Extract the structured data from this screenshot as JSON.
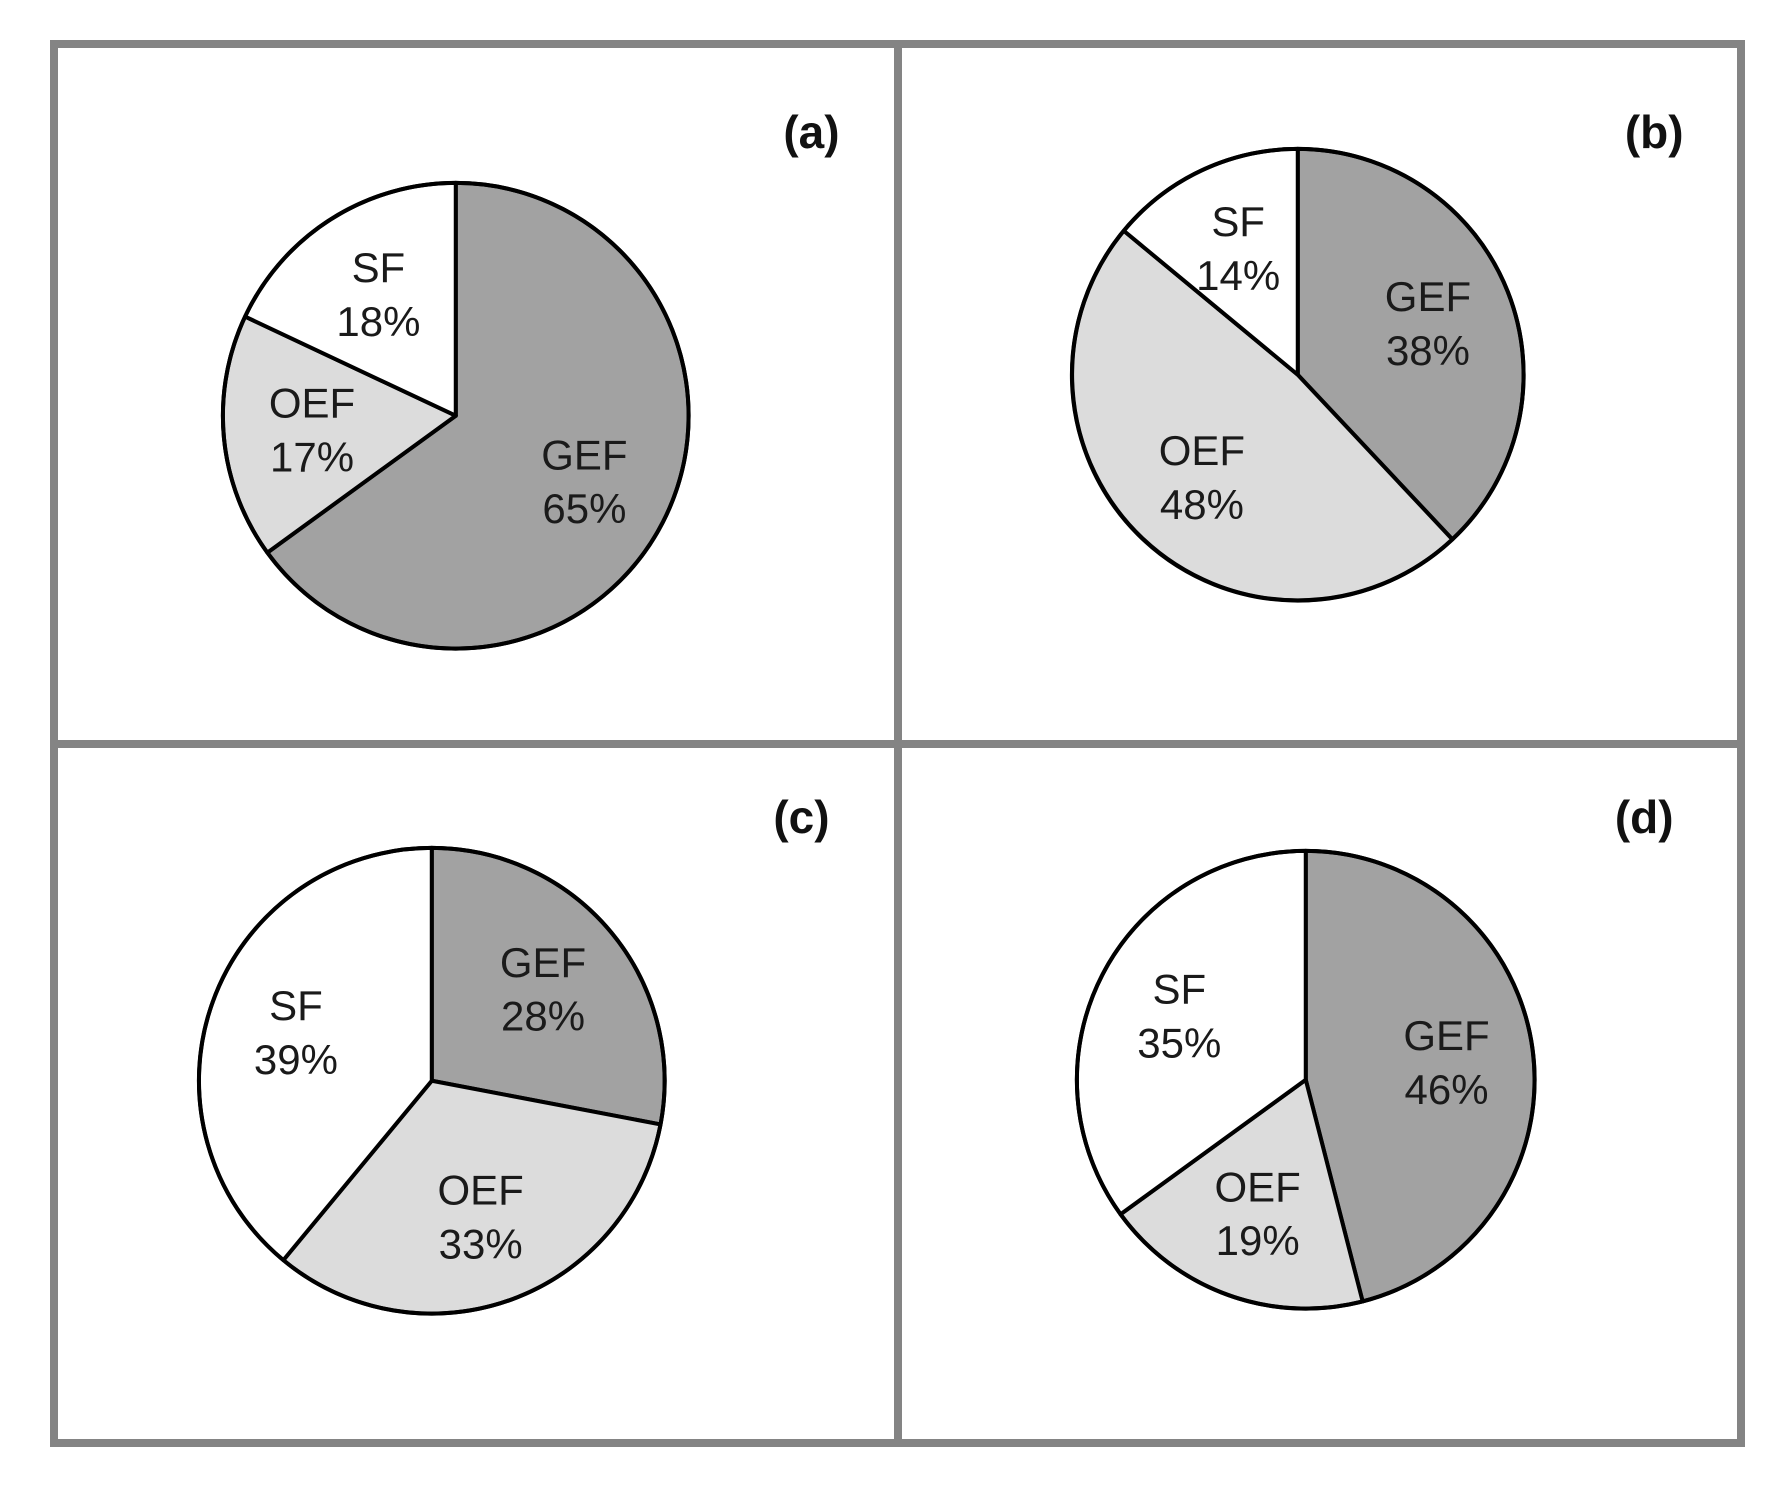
{
  "figure": {
    "background": "#ffffff",
    "frame_color": "#848484",
    "panel_background": "#ffffff",
    "slice_stroke_color": "#000000",
    "slice_label_color": "#1a1a1a",
    "panel_label_color": "#111111"
  },
  "chart_data": [
    {
      "type": "pie",
      "title": "(a)",
      "labels": [
        "GEF",
        "OEF",
        "SF"
      ],
      "values": [
        65,
        17,
        18
      ],
      "value_suffix": "%",
      "colors": [
        "#a2a2a2",
        "#dcdcdc",
        "#ffffff"
      ],
      "start_angle_deg": -90,
      "direction": "clockwise",
      "legend": "none",
      "data_labels": "inside"
    },
    {
      "type": "pie",
      "title": "(b)",
      "labels": [
        "GEF",
        "OEF",
        "SF"
      ],
      "values": [
        38,
        48,
        14
      ],
      "value_suffix": "%",
      "colors": [
        "#a2a2a2",
        "#dcdcdc",
        "#ffffff"
      ],
      "start_angle_deg": -90,
      "direction": "clockwise",
      "legend": "none",
      "data_labels": "inside"
    },
    {
      "type": "pie",
      "title": "(c)",
      "labels": [
        "GEF",
        "OEF",
        "SF"
      ],
      "values": [
        28,
        33,
        39
      ],
      "value_suffix": "%",
      "colors": [
        "#a2a2a2",
        "#dcdcdc",
        "#ffffff"
      ],
      "start_angle_deg": -90,
      "direction": "clockwise",
      "legend": "none",
      "data_labels": "inside"
    },
    {
      "type": "pie",
      "title": "(d)",
      "labels": [
        "GEF",
        "OEF",
        "SF"
      ],
      "values": [
        46,
        19,
        35
      ],
      "value_suffix": "%",
      "colors": [
        "#a2a2a2",
        "#dcdcdc",
        "#ffffff"
      ],
      "start_angle_deg": -90,
      "direction": "clockwise",
      "legend": "none",
      "data_labels": "inside"
    }
  ]
}
